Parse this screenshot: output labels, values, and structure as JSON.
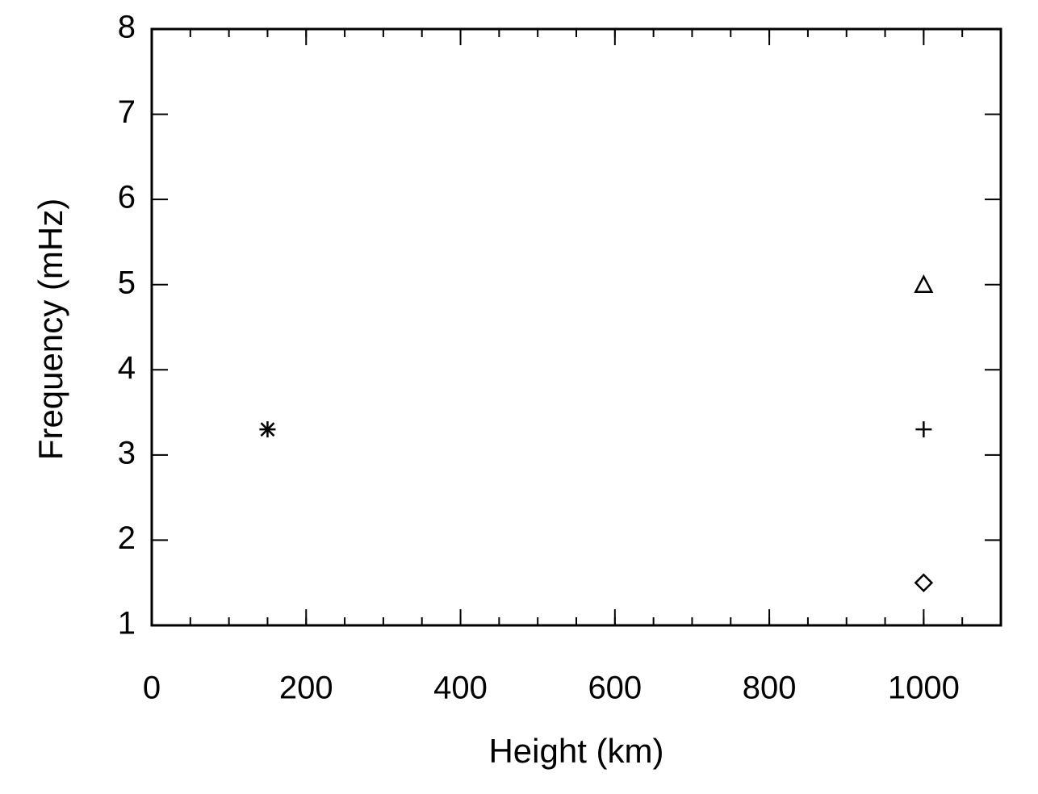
{
  "chart_data": {
    "type": "scatter",
    "xlabel": "Height (km)",
    "ylabel": "Frequency (mHz)",
    "xlim": [
      0,
      1100
    ],
    "ylim": [
      1,
      8
    ],
    "xticks": [
      0,
      200,
      400,
      600,
      800,
      1000
    ],
    "yticks": [
      1,
      2,
      3,
      4,
      5,
      6,
      7,
      8
    ],
    "xminor": 50,
    "series": [
      {
        "marker": "asterisk",
        "color": "#000000",
        "x": [
          150
        ],
        "values": [
          3.3
        ]
      },
      {
        "marker": "plus",
        "color": "#000000",
        "x": [
          1000
        ],
        "values": [
          3.3
        ]
      },
      {
        "marker": "triangle",
        "color": "#000000",
        "x": [
          1000
        ],
        "values": [
          5.0
        ]
      },
      {
        "marker": "diamond",
        "color": "#000000",
        "x": [
          1000
        ],
        "values": [
          1.5
        ]
      }
    ]
  }
}
